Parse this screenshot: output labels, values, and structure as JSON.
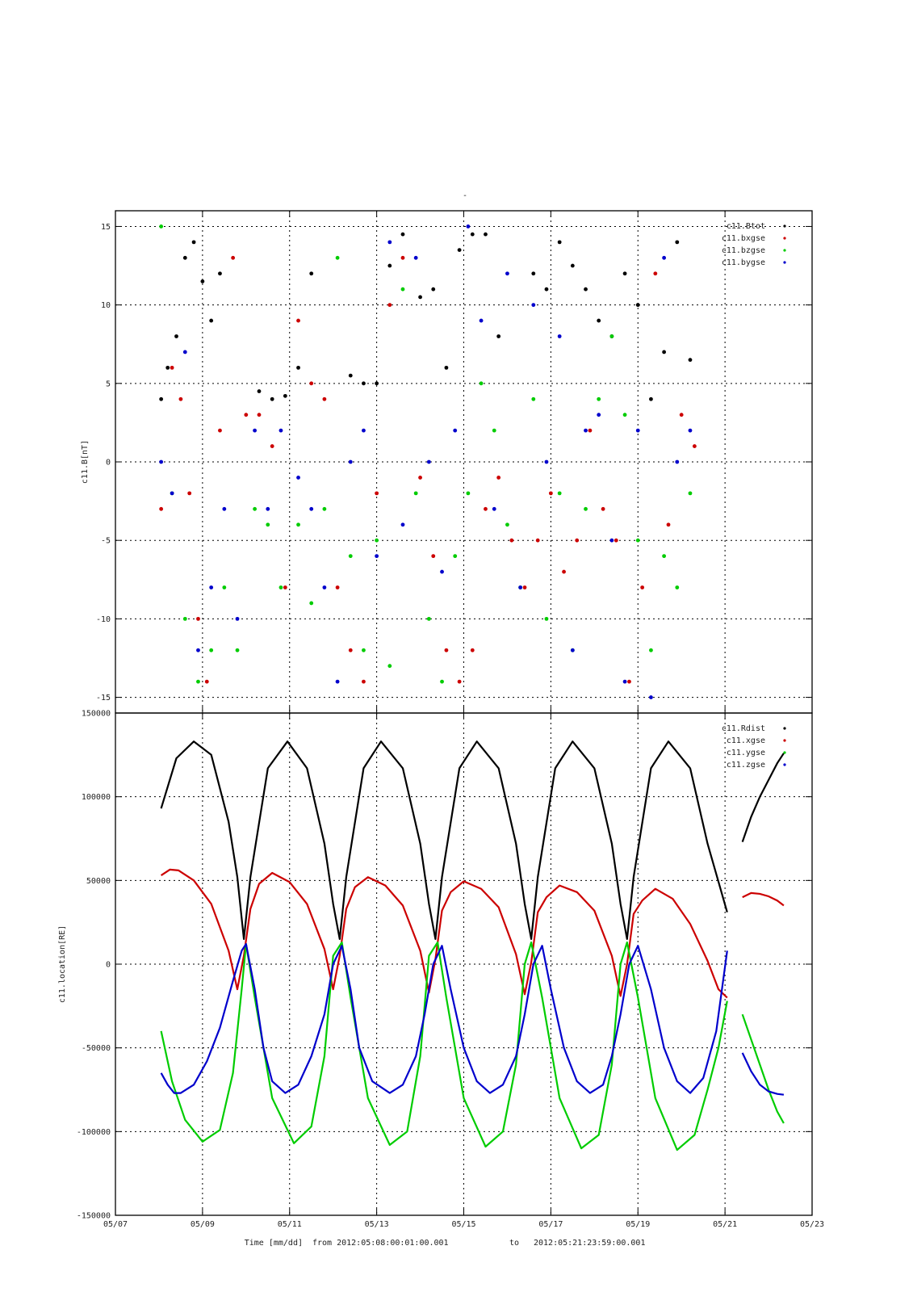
{
  "figure": {
    "title": "-",
    "xlabel_time": "Time [mm/dd]",
    "xlabel_from": "from 2012:05:08:00:01:00.001",
    "xlabel_to": "to",
    "xlabel_end": "2012:05:21:23:59:00.001"
  },
  "chart_data": [
    {
      "type": "scatter",
      "ylabel": "c11.B[nT]",
      "xlim": [
        0,
        16
      ],
      "ylim": [
        -16,
        16
      ],
      "yticks": [
        15,
        10,
        5,
        0,
        -5,
        -10,
        -15
      ],
      "xticks": [
        0,
        2,
        4,
        6,
        8,
        10,
        12,
        14,
        16
      ],
      "xtick_labels": [
        "05/07",
        "05/09",
        "05/11",
        "05/13",
        "05/15",
        "05/17",
        "05/19",
        "05/21",
        "05/23"
      ],
      "grid": true,
      "legend_position": "top-right",
      "series": [
        {
          "name": "c11.Btot",
          "color": "#000000",
          "x": [
            1.05,
            1.2,
            1.4,
            1.6,
            1.8,
            2.0,
            2.2,
            2.4,
            3.3,
            3.6,
            3.9,
            4.2,
            4.5,
            5.4,
            5.7,
            6.0,
            6.3,
            6.6,
            7.0,
            7.3,
            7.6,
            7.9,
            8.2,
            8.5,
            8.8,
            9.6,
            9.9,
            10.2,
            10.5,
            10.8,
            11.1,
            11.4,
            11.7,
            12.0,
            12.3,
            12.6,
            12.9,
            13.2
          ],
          "y": [
            4.0,
            6.0,
            8.0,
            13.0,
            14.0,
            11.5,
            9.0,
            12.0,
            4.5,
            4.0,
            4.2,
            6.0,
            12.0,
            5.5,
            5.0,
            5.0,
            12.5,
            14.5,
            10.5,
            11.0,
            6.0,
            13.5,
            14.5,
            14.5,
            8.0,
            12.0,
            11.0,
            14.0,
            12.5,
            11.0,
            9.0,
            8.0,
            12.0,
            10.0,
            4.0,
            7.0,
            14.0,
            6.5
          ]
        },
        {
          "name": "c11.bxgse",
          "color": "#cc0000",
          "x": [
            1.05,
            1.3,
            1.5,
            1.7,
            1.9,
            2.1,
            2.4,
            2.7,
            3.0,
            3.3,
            3.6,
            3.9,
            4.2,
            4.5,
            4.8,
            5.1,
            5.4,
            5.7,
            6.0,
            6.3,
            6.6,
            7.0,
            7.3,
            7.6,
            7.9,
            8.2,
            8.5,
            8.8,
            9.1,
            9.4,
            9.7,
            10.0,
            10.3,
            10.6,
            10.9,
            11.2,
            11.5,
            11.8,
            12.1,
            12.4,
            12.7,
            13.0,
            13.3
          ],
          "y": [
            -3.0,
            6.0,
            4.0,
            -2.0,
            -10.0,
            -14.0,
            2.0,
            13.0,
            3.0,
            3.0,
            1.0,
            -8.0,
            9.0,
            5.0,
            4.0,
            -8.0,
            -12.0,
            -14.0,
            -2.0,
            10.0,
            13.0,
            -1.0,
            -6.0,
            -12.0,
            -14.0,
            -12.0,
            -3.0,
            -1.0,
            -5.0,
            -8.0,
            -5.0,
            -2.0,
            -7.0,
            -5.0,
            2.0,
            -3.0,
            -5.0,
            -14.0,
            -8.0,
            12.0,
            -4.0,
            3.0,
            1.0
          ]
        },
        {
          "name": "c11.bzgse",
          "color": "#00cc00",
          "x": [
            1.05,
            1.3,
            1.6,
            1.9,
            2.2,
            2.5,
            2.8,
            3.2,
            3.5,
            3.8,
            4.2,
            4.5,
            4.8,
            5.1,
            5.4,
            5.7,
            6.0,
            6.3,
            6.6,
            6.9,
            7.2,
            7.5,
            7.8,
            8.1,
            8.4,
            8.7,
            9.0,
            9.3,
            9.6,
            9.9,
            10.2,
            10.5,
            10.8,
            11.1,
            11.4,
            11.7,
            12.0,
            12.3,
            12.6,
            12.9,
            13.2
          ],
          "y": [
            15.0,
            -2.0,
            -10.0,
            -14.0,
            -12.0,
            -8.0,
            -12.0,
            -3.0,
            -4.0,
            -8.0,
            -4.0,
            -9.0,
            -3.0,
            13.0,
            -6.0,
            -12.0,
            -5.0,
            -13.0,
            11.0,
            -2.0,
            -10.0,
            -14.0,
            -6.0,
            -2.0,
            5.0,
            2.0,
            -4.0,
            -8.0,
            4.0,
            -10.0,
            -2.0,
            -12.0,
            -3.0,
            4.0,
            8.0,
            3.0,
            -5.0,
            -12.0,
            -6.0,
            -8.0,
            -2.0
          ]
        },
        {
          "name": "c11.bygse",
          "color": "#0000cc",
          "x": [
            1.05,
            1.3,
            1.6,
            1.9,
            2.2,
            2.5,
            2.8,
            3.2,
            3.5,
            3.8,
            4.2,
            4.5,
            4.8,
            5.1,
            5.4,
            5.7,
            6.0,
            6.3,
            6.6,
            6.9,
            7.2,
            7.5,
            7.8,
            8.1,
            8.4,
            8.7,
            9.0,
            9.3,
            9.6,
            9.9,
            10.2,
            10.5,
            10.8,
            11.1,
            11.4,
            11.7,
            12.0,
            12.3,
            12.6,
            12.9,
            13.2
          ],
          "y": [
            0.0,
            -2.0,
            7.0,
            -12.0,
            -8.0,
            -3.0,
            -10.0,
            2.0,
            -3.0,
            2.0,
            -1.0,
            -3.0,
            -8.0,
            -14.0,
            0.0,
            2.0,
            -6.0,
            14.0,
            -4.0,
            13.0,
            0.0,
            -7.0,
            2.0,
            15.0,
            9.0,
            -3.0,
            12.0,
            -8.0,
            10.0,
            0.0,
            8.0,
            -12.0,
            2.0,
            3.0,
            -5.0,
            -14.0,
            2.0,
            -15.0,
            13.0,
            0.0,
            2.0
          ]
        }
      ]
    },
    {
      "type": "line",
      "ylabel": "c11.location[RE]",
      "xlim": [
        0,
        16
      ],
      "ylim": [
        -150000,
        150000
      ],
      "yticks": [
        150000,
        100000,
        50000,
        0,
        -50000,
        -100000,
        -150000
      ],
      "xticks": [
        0,
        2,
        4,
        6,
        8,
        10,
        12,
        14,
        16
      ],
      "xtick_labels": [
        "05/07",
        "05/09",
        "05/11",
        "05/13",
        "05/15",
        "05/17",
        "05/19",
        "05/21",
        "05/23"
      ],
      "grid": true,
      "legend_position": "top-right",
      "series": [
        {
          "name": "c11.Rdist",
          "color": "#000000",
          "x": [
            1.05,
            1.4,
            1.8,
            2.2,
            2.6,
            2.8,
            2.95,
            3.1,
            3.5,
            3.95,
            4.4,
            4.8,
            5.0,
            5.15,
            5.3,
            5.7,
            6.1,
            6.6,
            7.0,
            7.2,
            7.35,
            7.5,
            7.9,
            8.3,
            8.8,
            9.2,
            9.4,
            9.55,
            9.7,
            10.1,
            10.5,
            11.0,
            11.4,
            11.6,
            11.75,
            11.9,
            12.3,
            12.7,
            13.2,
            13.6,
            14.05
          ],
          "y": [
            93000,
            123000,
            133000,
            125000,
            85000,
            52000,
            15000,
            52000,
            117000,
            133000,
            117000,
            72000,
            36000,
            15000,
            52000,
            117000,
            133000,
            117000,
            72000,
            36000,
            15000,
            52000,
            117000,
            133000,
            117000,
            72000,
            36000,
            15000,
            52000,
            117000,
            133000,
            117000,
            72000,
            36000,
            15000,
            52000,
            117000,
            133000,
            117000,
            72000,
            31000
          ]
        },
        {
          "name": "c11.xgse",
          "color": "#cc0000",
          "x": [
            1.05,
            1.25,
            1.45,
            1.8,
            2.2,
            2.6,
            2.8,
            2.95,
            3.1,
            3.3,
            3.6,
            4.0,
            4.4,
            4.8,
            5.0,
            5.15,
            5.3,
            5.5,
            5.8,
            6.2,
            6.6,
            7.0,
            7.2,
            7.35,
            7.5,
            7.7,
            8.0,
            8.4,
            8.8,
            9.2,
            9.4,
            9.55,
            9.7,
            9.9,
            10.2,
            10.6,
            11.0,
            11.4,
            11.6,
            11.75,
            11.9,
            12.1,
            12.4,
            12.8,
            13.2,
            13.6,
            13.85,
            14.05
          ],
          "y": [
            53000,
            56500,
            56000,
            50000,
            36000,
            8000,
            -15000,
            5000,
            33000,
            48000,
            54500,
            49000,
            36000,
            9000,
            -15000,
            5000,
            33000,
            46000,
            52000,
            47000,
            35000,
            8000,
            -17000,
            3000,
            32000,
            43000,
            49500,
            45000,
            34000,
            6000,
            -18000,
            1000,
            31000,
            40000,
            47000,
            43000,
            32000,
            5000,
            -19000,
            0,
            30000,
            38000,
            45000,
            39000,
            24000,
            2000,
            -15000,
            -20000
          ]
        },
        {
          "name": "c11.ygse",
          "color": "#00cc00",
          "x": [
            1.05,
            1.3,
            1.6,
            2.0,
            2.4,
            2.7,
            2.9,
            3.0,
            3.2,
            3.6,
            4.1,
            4.5,
            4.8,
            5.0,
            5.2,
            5.4,
            5.8,
            6.3,
            6.7,
            7.0,
            7.2,
            7.4,
            7.6,
            8.0,
            8.5,
            8.9,
            9.2,
            9.4,
            9.55,
            9.8,
            10.2,
            10.7,
            11.1,
            11.4,
            11.6,
            11.75,
            12.0,
            12.4,
            12.9,
            13.3,
            13.6,
            13.85,
            14.05
          ],
          "y": [
            -40000,
            -70000,
            -93000,
            -106000,
            -99000,
            -65000,
            -15000,
            12000,
            -20000,
            -80000,
            -107000,
            -97000,
            -55000,
            5000,
            13000,
            -20000,
            -80000,
            -108000,
            -100000,
            -55000,
            5000,
            13000,
            -20000,
            -80000,
            -109000,
            -100000,
            -60000,
            0,
            13000,
            -20000,
            -80000,
            -110000,
            -102000,
            -60000,
            0,
            13000,
            -20000,
            -80000,
            -111000,
            -102000,
            -75000,
            -50000,
            -22000
          ]
        },
        {
          "name": "c11.zgse",
          "color": "#0000cc",
          "x": [
            1.05,
            1.2,
            1.35,
            1.5,
            1.8,
            2.1,
            2.4,
            2.7,
            2.9,
            3.0,
            3.2,
            3.4,
            3.6,
            3.9,
            4.2,
            4.5,
            4.8,
            5.0,
            5.2,
            5.4,
            5.6,
            5.9,
            6.3,
            6.6,
            6.9,
            7.1,
            7.3,
            7.5,
            7.7,
            8.0,
            8.3,
            8.6,
            8.9,
            9.2,
            9.4,
            9.6,
            9.8,
            10.0,
            10.3,
            10.6,
            10.9,
            11.2,
            11.4,
            11.6,
            11.8,
            12.0,
            12.3,
            12.6,
            12.9,
            13.2,
            13.5,
            13.8,
            14.05
          ],
          "y": [
            -65000,
            -72000,
            -77000,
            -77000,
            -72000,
            -58000,
            -38000,
            -10000,
            8000,
            12000,
            -15000,
            -50000,
            -70000,
            -77000,
            -72000,
            -55000,
            -30000,
            0,
            11000,
            -15000,
            -50000,
            -70000,
            -77000,
            -72000,
            -55000,
            -30000,
            0,
            11000,
            -15000,
            -50000,
            -70000,
            -77000,
            -72000,
            -55000,
            -30000,
            0,
            11000,
            -15000,
            -50000,
            -70000,
            -77000,
            -72000,
            -55000,
            -30000,
            0,
            11000,
            -15000,
            -50000,
            -70000,
            -77000,
            -68000,
            -40000,
            8000
          ]
        }
      ],
      "late_segment": {
        "x": [
          14.4,
          14.6,
          14.8,
          15.0,
          15.2,
          15.35
        ],
        "Rdist": [
          73000,
          88000,
          100000,
          110000,
          120000,
          126000
        ],
        "xgse": [
          40000,
          42500,
          42000,
          40500,
          38000,
          35000
        ],
        "ygse": [
          -30000,
          -45000,
          -60000,
          -75000,
          -88000,
          -95000
        ],
        "zgse": [
          -53000,
          -64000,
          -72000,
          -76000,
          -77500,
          -78000
        ]
      }
    }
  ]
}
